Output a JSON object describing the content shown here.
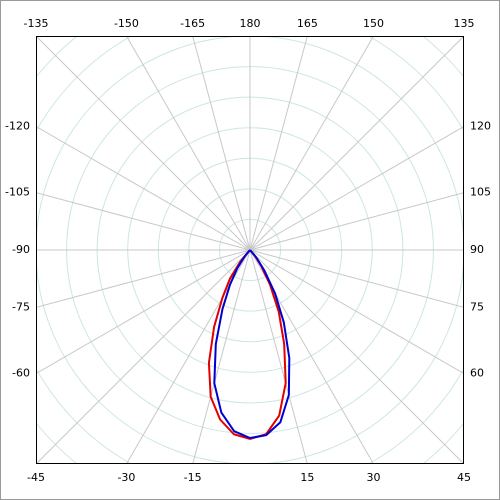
{
  "chart_data": {
    "type": "polar",
    "theta": [
      -45,
      -40,
      -35,
      -30,
      -25,
      -20,
      -15,
      -10,
      -5,
      0,
      5,
      10,
      15,
      20,
      25,
      30,
      35,
      40,
      45
    ],
    "series": [
      {
        "color": "#e00000",
        "values": [
          0,
          0.49,
          1.14,
          1.8,
          2.78,
          3.93,
          4.97,
          5.63,
          6.05,
          6.18,
          6.05,
          5.5,
          4.51,
          3.27,
          2.22,
          1.31,
          0.65,
          0.26,
          0
        ]
      },
      {
        "color": "#0000d0",
        "values": [
          0,
          0.26,
          0.72,
          1.31,
          2.13,
          3.27,
          4.51,
          5.4,
          5.95,
          6.15,
          6.08,
          5.72,
          4.91,
          3.76,
          2.62,
          1.64,
          0.82,
          0.33,
          0
        ]
      }
    ],
    "rlim": [
      0,
      7
    ],
    "rticks": [
      1,
      2,
      3,
      4,
      5,
      6,
      7,
      8,
      9
    ],
    "thetaticks": [
      -135,
      -150,
      -165,
      180,
      165,
      150,
      135,
      120,
      105,
      90,
      75,
      60,
      45,
      30,
      15,
      -15,
      -30,
      -45,
      -60,
      -75,
      -90,
      -105,
      -120
    ],
    "grid": true
  }
}
